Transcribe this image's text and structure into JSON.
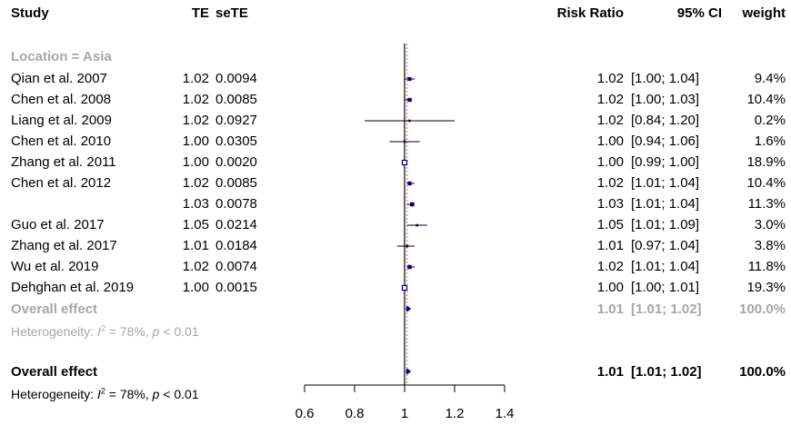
{
  "headers": {
    "study": "Study",
    "te": "TE",
    "sete": "seTE",
    "rr": "Risk Ratio",
    "ci": "95% CI",
    "weight": "weight"
  },
  "subgroup": {
    "label": "Location = Asia",
    "overall_label": "Overall effect",
    "overall_value": "1.01",
    "overall_ci": "[1.01; 1.02]",
    "overall_weight": "100.0%",
    "het_prefix": "Heterogeneity: ",
    "het_i": "I",
    "het_sup": "2",
    "het_eq": " = 78%, ",
    "het_p": "p",
    "het_lt": " < 0.01"
  },
  "overall": {
    "label": "Overall effect",
    "value": "1.01",
    "ci": "[1.01; 1.02]",
    "weight": "100.0%",
    "het_prefix": "Heterogeneity: ",
    "het_i": "I",
    "het_sup": "2",
    "het_eq": " = 78%, ",
    "het_p": "p",
    "het_lt": " < 0.01"
  },
  "colors": {
    "study_marker": "#00008b",
    "overall_diamond": "#00008b",
    "pooled_line": "#e06666",
    "grey_text": "#a6a6a6"
  },
  "chart_data": {
    "type": "forest",
    "xlim": [
      0.6,
      1.4
    ],
    "x_ticks": [
      "0.6",
      "0.8",
      "1",
      "1.2",
      "1.4"
    ],
    "null_line": 1,
    "pooled_estimate": 1.01,
    "pooled_ci": [
      1.01,
      1.02
    ],
    "studies": [
      {
        "study": "Qian et al. 2007",
        "te": "1.02",
        "sete": "0.0094",
        "rr": 1.02,
        "lower": 1.0,
        "upper": 1.04,
        "weight": "9.4%",
        "rr_text": "1.02",
        "ci_text": "[1.00; 1.04]"
      },
      {
        "study": "Chen et al. 2008",
        "te": "1.02",
        "sete": "0.0085",
        "rr": 1.02,
        "lower": 1.0,
        "upper": 1.03,
        "weight": "10.4%",
        "rr_text": "1.02",
        "ci_text": "[1.00; 1.03]"
      },
      {
        "study": "Liang et al. 2009",
        "te": "1.02",
        "sete": "0.0927",
        "rr": 1.02,
        "lower": 0.84,
        "upper": 1.2,
        "weight": "0.2%",
        "rr_text": "1.02",
        "ci_text": "[0.84; 1.20]"
      },
      {
        "study": "Chen et al. 2010",
        "te": "1.00",
        "sete": "0.0305",
        "rr": 1.0,
        "lower": 0.94,
        "upper": 1.06,
        "weight": "1.6%",
        "rr_text": "1.00",
        "ci_text": "[0.94; 1.06]"
      },
      {
        "study": "Zhang et al. 2011",
        "te": "1.00",
        "sete": "0.0020",
        "rr": 1.0,
        "lower": 0.99,
        "upper": 1.0,
        "weight": "18.9%",
        "rr_text": "1.00",
        "ci_text": "[0.99; 1.00]"
      },
      {
        "study": "Chen et al. 2012",
        "te": "1.02",
        "sete": "0.0085",
        "rr": 1.02,
        "lower": 1.01,
        "upper": 1.04,
        "weight": "10.4%",
        "rr_text": "1.02",
        "ci_text": "[1.01; 1.04]"
      },
      {
        "study": "",
        "te": "1.03",
        "sete": "0.0078",
        "rr": 1.03,
        "lower": 1.01,
        "upper": 1.04,
        "weight": "11.3%",
        "rr_text": "1.03",
        "ci_text": "[1.01; 1.04]"
      },
      {
        "study": "Guo et al. 2017",
        "te": "1.05",
        "sete": "0.0214",
        "rr": 1.05,
        "lower": 1.01,
        "upper": 1.09,
        "weight": "3.0%",
        "rr_text": "1.05",
        "ci_text": "[1.01; 1.09]"
      },
      {
        "study": "Zhang et al. 2017",
        "te": "1.01",
        "sete": "0.0184",
        "rr": 1.01,
        "lower": 0.97,
        "upper": 1.04,
        "weight": "3.8%",
        "rr_text": "1.01",
        "ci_text": "[0.97; 1.04]"
      },
      {
        "study": "Wu et al. 2019",
        "te": "1.02",
        "sete": "0.0074",
        "rr": 1.02,
        "lower": 1.01,
        "upper": 1.04,
        "weight": "11.8%",
        "rr_text": "1.02",
        "ci_text": "[1.01; 1.04]"
      },
      {
        "study": "Dehghan et al. 2019",
        "te": "1.00",
        "sete": "0.0015",
        "rr": 1.0,
        "lower": 1.0,
        "upper": 1.01,
        "weight": "19.3%",
        "rr_text": "1.00",
        "ci_text": "[1.00; 1.01]"
      }
    ]
  }
}
